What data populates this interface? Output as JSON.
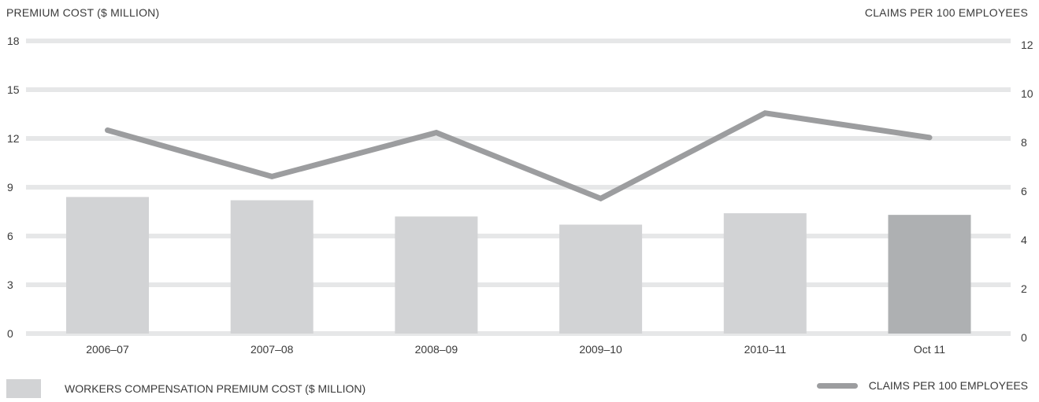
{
  "chart_data": {
    "type": "bar",
    "categories": [
      "2006–07",
      "2007–08",
      "2008–09",
      "2009–10",
      "2010–11",
      "Oct 11"
    ],
    "series": [
      {
        "name": "WORKERS COMPENSATION PREMIUM COST ($ MILLION)",
        "kind": "bar",
        "axis": "left",
        "values": [
          8.4,
          8.2,
          7.2,
          6.7,
          7.4,
          7.3
        ],
        "color": "#d2d3d5",
        "highlight_color": "#aeb0b2",
        "highlight_index": 5
      },
      {
        "name": "CLAIMS PER 100 EMPLOYEES",
        "kind": "line",
        "axis": "right",
        "values": [
          8.5,
          6.6,
          8.4,
          5.7,
          9.2,
          8.2
        ],
        "color": "#9c9d9f"
      }
    ],
    "ylabel": "PREMIUM COST ($ MILLION)",
    "ylabel_right": "CLAIMS PER 100 EMPLOYEES",
    "ylim": [
      0,
      18
    ],
    "ylim_right": [
      0,
      12
    ],
    "yticks": [
      "0",
      "3",
      "6",
      "9",
      "12",
      "15",
      "18"
    ],
    "yticks_right": [
      "0",
      "2",
      "4",
      "6",
      "8",
      "10",
      "12"
    ],
    "grid": true,
    "legend_position": "bottom"
  }
}
